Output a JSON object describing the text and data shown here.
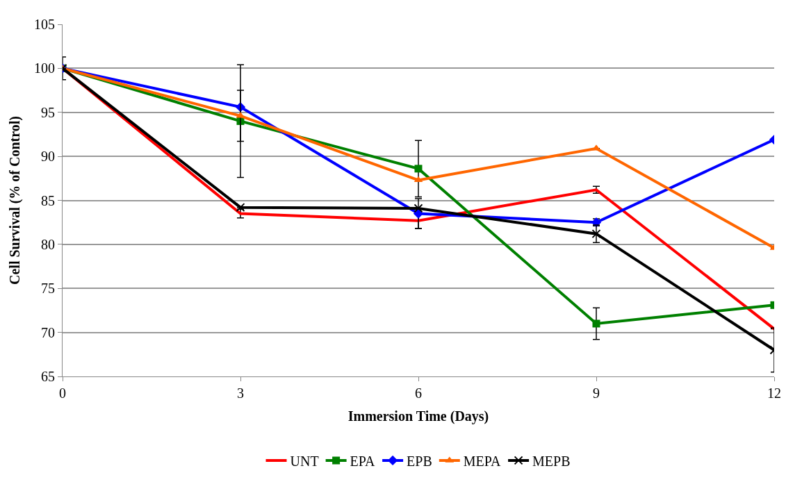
{
  "chart_data": {
    "type": "line",
    "xlabel": "Immersion Time (Days)",
    "ylabel": "Cell Survival (% of Control)",
    "x": [
      0,
      3,
      6,
      9,
      12
    ],
    "series": [
      {
        "name": "UNT",
        "color": "#ff0000",
        "marker": "none",
        "values": [
          100,
          83.5,
          82.7,
          86.2,
          70.4
        ],
        "errors": [
          null,
          0.5,
          0.9,
          0.4,
          null
        ]
      },
      {
        "name": "EPA",
        "color": "#008000",
        "marker": "square",
        "values": [
          100,
          94.0,
          88.6,
          71.0,
          73.1
        ],
        "errors": [
          1.3,
          6.4,
          3.2,
          1.8,
          null
        ]
      },
      {
        "name": "EPB",
        "color": "#0000ff",
        "marker": "diamond",
        "values": [
          100,
          95.6,
          83.5,
          82.5,
          91.9
        ],
        "errors": [
          null,
          null,
          1.7,
          0.4,
          null
        ]
      },
      {
        "name": "MEPA",
        "color": "#ff6600",
        "marker": "triangle",
        "values": [
          100,
          94.6,
          87.3,
          90.9,
          79.6
        ],
        "errors": [
          null,
          2.9,
          null,
          null,
          null
        ]
      },
      {
        "name": "MEPB",
        "color": "#000000",
        "marker": "cross",
        "values": [
          100,
          84.2,
          84.1,
          81.2,
          68.0
        ],
        "errors": [
          null,
          null,
          null,
          1.0,
          2.5
        ]
      }
    ],
    "xlim": [
      0,
      12
    ],
    "xticks": [
      0,
      3,
      6,
      9,
      12
    ],
    "ylim": [
      65,
      105
    ],
    "yticks": [
      65,
      70,
      75,
      80,
      85,
      90,
      95,
      100,
      105
    ],
    "grid": "y",
    "legend": "bottom",
    "line_style": "solid"
  }
}
